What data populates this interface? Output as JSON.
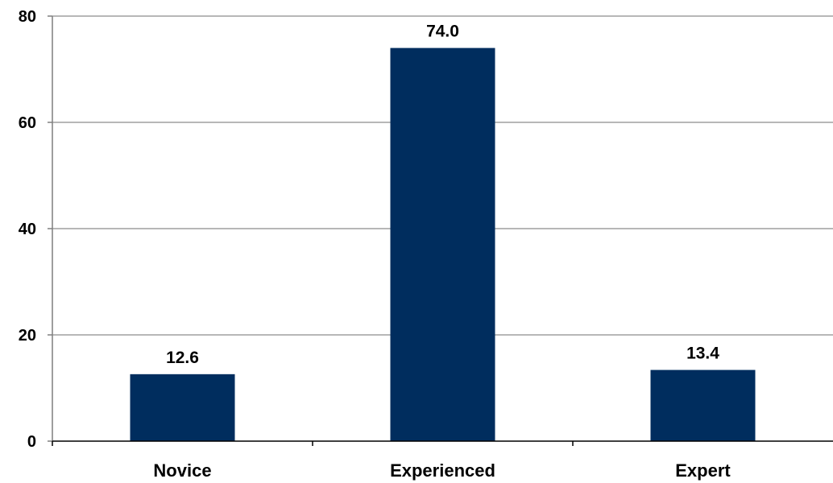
{
  "chart_data": {
    "type": "bar",
    "categories": [
      "Novice",
      "Experienced",
      "Expert"
    ],
    "values": [
      12.6,
      74.0,
      13.4
    ],
    "data_labels": [
      "12.6",
      "74.0",
      "13.4"
    ],
    "yticks": [
      "0",
      "20",
      "40",
      "60",
      "80"
    ],
    "ylim": [
      0,
      80
    ],
    "grid": true,
    "legend": "none",
    "bar_color": "#002D5E"
  }
}
